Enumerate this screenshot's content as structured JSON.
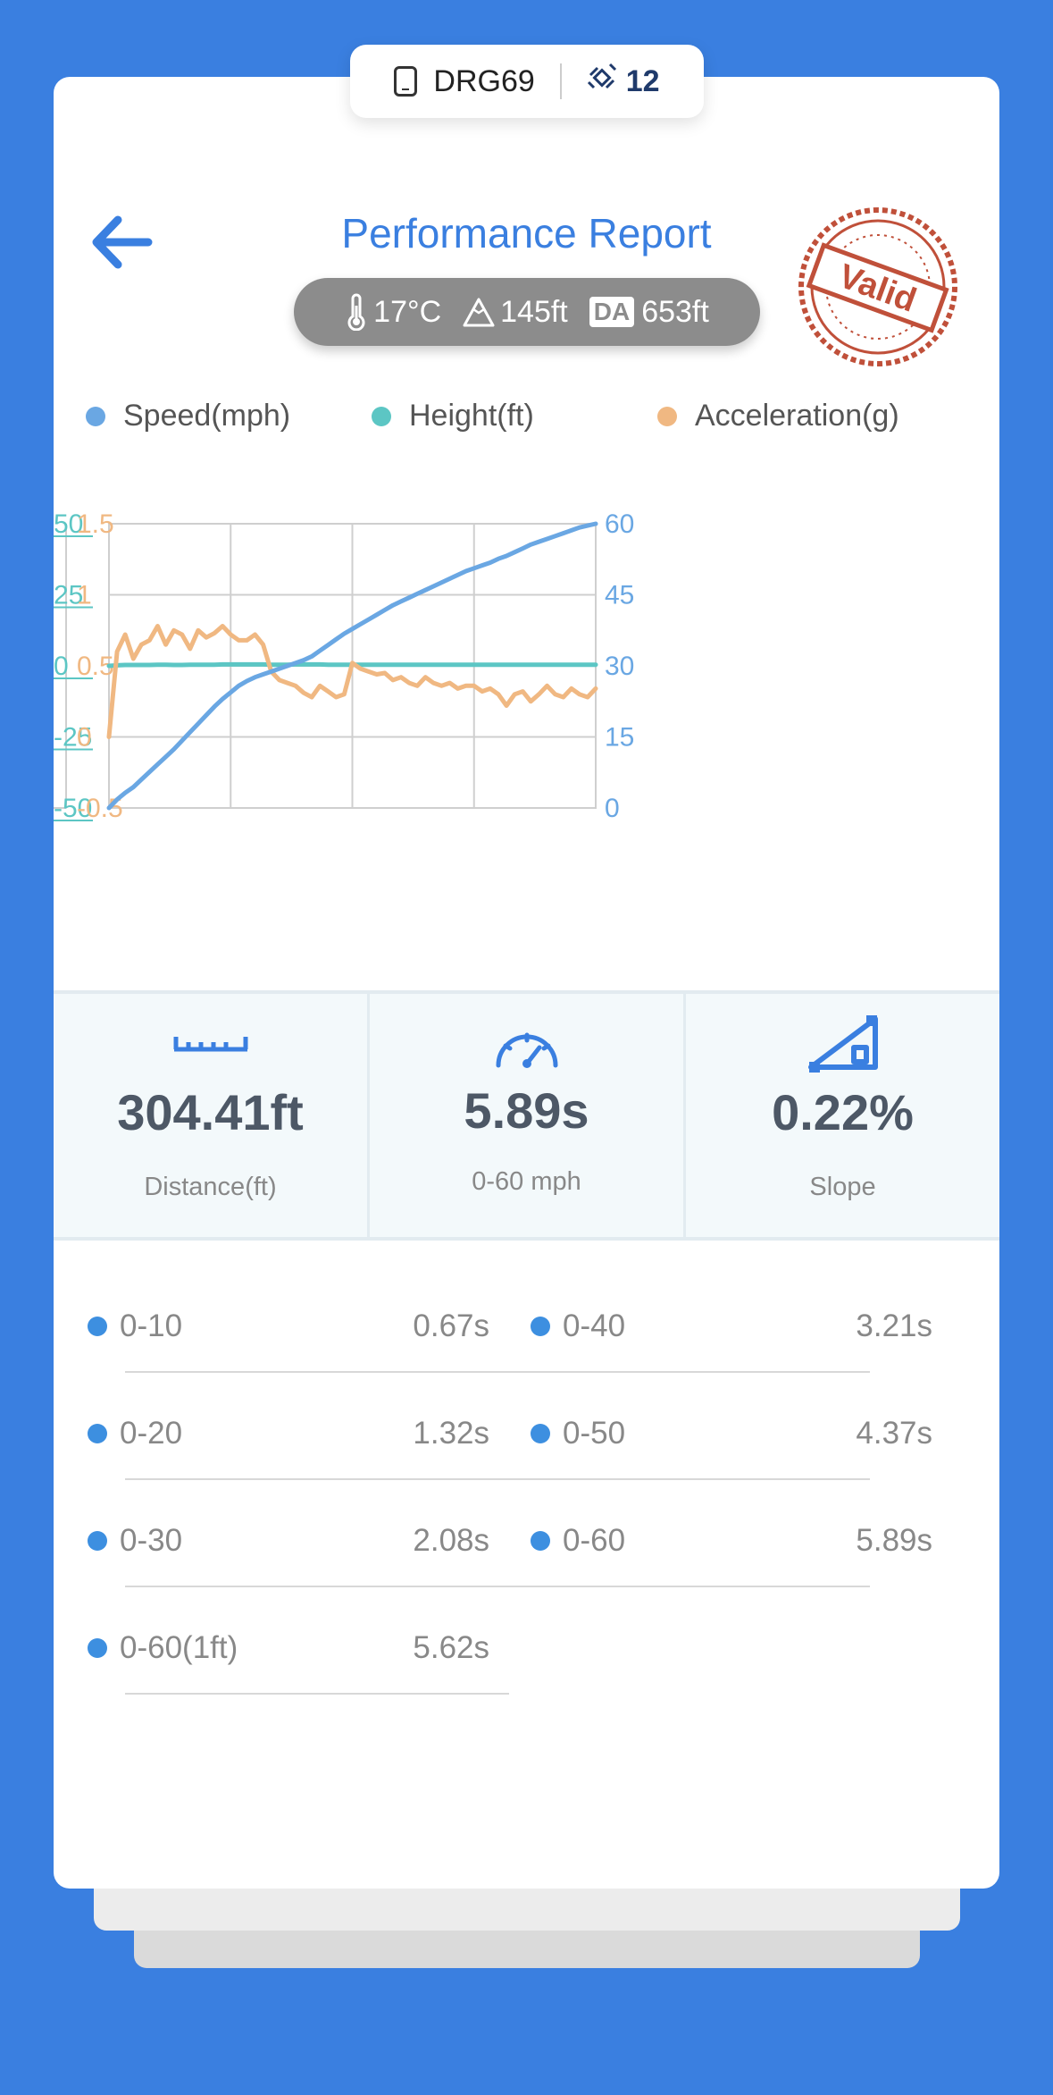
{
  "device": {
    "name": "DRG69",
    "icon": "phone-icon",
    "satellite_icon": "satellite-icon",
    "satellites": "12"
  },
  "header": {
    "title": "Performance Report",
    "back_icon": "arrow-left-icon"
  },
  "conditions": {
    "temperature": "17°C",
    "altitude": "145ft",
    "da_label": "DA",
    "density_altitude": "653ft"
  },
  "stamp": {
    "text": "Valid",
    "color": "#c0503a"
  },
  "legend": [
    {
      "label": "Speed(mph)",
      "color": "#6aa7e3"
    },
    {
      "label": "Height(ft)",
      "color": "#5cc6c4"
    },
    {
      "label": "Acceleration(g)",
      "color": "#f0b882"
    }
  ],
  "chart_data": {
    "type": "line",
    "grid": true,
    "x": [
      0,
      1,
      2,
      3,
      4,
      5,
      6,
      7,
      8,
      9,
      10,
      11,
      12,
      13,
      14,
      15,
      16,
      17,
      18,
      19,
      20,
      21,
      22,
      23,
      24,
      25,
      26,
      27,
      28,
      29,
      30,
      31,
      32,
      33,
      34,
      35,
      36,
      37,
      38,
      39,
      40,
      41,
      42,
      43,
      44,
      45,
      46,
      47,
      48,
      49,
      50,
      51,
      52,
      53,
      54,
      55,
      56,
      57,
      58,
      59,
      60
    ],
    "series": [
      {
        "name": "Speed(mph)",
        "axis": "right",
        "color": "#6aa7e3",
        "ylim": [
          0,
          60
        ],
        "ticks": [
          "60",
          "45",
          "30",
          "15",
          "0"
        ],
        "values": [
          0,
          1.8,
          3.2,
          4.4,
          6.0,
          7.6,
          9.2,
          10.8,
          12.4,
          14.2,
          16.0,
          17.8,
          19.6,
          21.4,
          23.0,
          24.4,
          25.8,
          26.8,
          27.6,
          28.2,
          28.8,
          29.4,
          30.0,
          30.6,
          31.2,
          32.0,
          33.2,
          34.4,
          35.6,
          36.8,
          37.8,
          38.8,
          39.8,
          40.8,
          41.8,
          42.8,
          43.6,
          44.4,
          45.2,
          46.0,
          46.8,
          47.6,
          48.4,
          49.2,
          50.0,
          50.6,
          51.2,
          51.8,
          52.6,
          53.2,
          54.0,
          54.8,
          55.6,
          56.2,
          56.8,
          57.4,
          58.0,
          58.6,
          59.2,
          59.6,
          60.0
        ]
      },
      {
        "name": "Height(ft)",
        "axis": "left-outer",
        "color": "#5cc6c4",
        "ylim": [
          -50,
          50
        ],
        "ticks": [
          "50",
          "25",
          "0",
          "-25",
          "-50"
        ],
        "values": [
          0,
          0.2,
          0.3,
          0.3,
          0.3,
          0.3,
          0.4,
          0.4,
          0.3,
          0.3,
          0.4,
          0.4,
          0.4,
          0.4,
          0.5,
          0.5,
          0.5,
          0.5,
          0.5,
          0.5,
          0.4,
          0.4,
          0.4,
          0.5,
          0.5,
          0.5,
          0.5,
          0.4,
          0.4,
          0.4,
          0.4,
          0.4,
          0.4,
          0.4,
          0.4,
          0.4,
          0.4,
          0.4,
          0.4,
          0.4,
          0.4,
          0.4,
          0.4,
          0.4,
          0.4,
          0.4,
          0.4,
          0.4,
          0.4,
          0.4,
          0.4,
          0.4,
          0.4,
          0.4,
          0.4,
          0.4,
          0.4,
          0.4,
          0.4,
          0.4,
          0.4
        ]
      },
      {
        "name": "Acceleration(g)",
        "axis": "left-inner",
        "color": "#f0b882",
        "ylim": [
          -0.5,
          1.5
        ],
        "ticks": [
          "1.5",
          "1",
          "0.5",
          "0",
          "-0.5"
        ],
        "values": [
          0,
          0.6,
          0.72,
          0.55,
          0.65,
          0.68,
          0.78,
          0.65,
          0.75,
          0.72,
          0.62,
          0.75,
          0.7,
          0.73,
          0.78,
          0.72,
          0.68,
          0.68,
          0.72,
          0.65,
          0.46,
          0.4,
          0.38,
          0.36,
          0.31,
          0.28,
          0.36,
          0.32,
          0.28,
          0.3,
          0.52,
          0.48,
          0.46,
          0.44,
          0.45,
          0.4,
          0.42,
          0.38,
          0.36,
          0.42,
          0.38,
          0.36,
          0.38,
          0.34,
          0.36,
          0.36,
          0.32,
          0.34,
          0.3,
          0.22,
          0.3,
          0.32,
          0.25,
          0.3,
          0.36,
          0.3,
          0.28,
          0.34,
          0.3,
          0.28,
          0.34
        ]
      }
    ]
  },
  "stats": [
    {
      "icon": "ruler-icon",
      "value": "304.41ft",
      "label": "Distance(ft)"
    },
    {
      "icon": "speedometer-icon",
      "value": "5.89s",
      "label": "0-60 mph"
    },
    {
      "icon": "slope-icon",
      "value": "0.22%",
      "label": "Slope"
    }
  ],
  "splits": [
    {
      "name": "0-10",
      "time": "0.67s"
    },
    {
      "name": "0-40",
      "time": "3.21s"
    },
    {
      "name": "0-20",
      "time": "1.32s"
    },
    {
      "name": "0-50",
      "time": "4.37s"
    },
    {
      "name": "0-30",
      "time": "2.08s"
    },
    {
      "name": "0-60",
      "time": "5.89s"
    },
    {
      "name": "0-60(1ft)",
      "time": "5.62s"
    }
  ]
}
